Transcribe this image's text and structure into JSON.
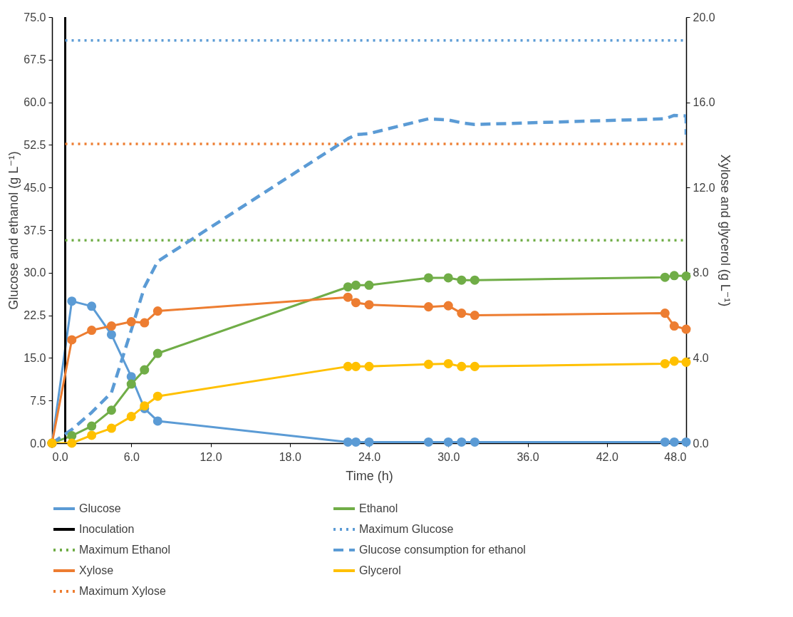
{
  "chart_data": {
    "type": "line",
    "xlabel": "Time (h)",
    "ylabel": "Glucose and ethanol (g L⁻¹)",
    "y2label": "Xylose and glycerol (g L⁻¹)",
    "x": [
      0,
      1.5,
      3,
      4.5,
      6,
      7,
      8,
      22.4,
      23,
      24,
      28.5,
      30,
      31,
      32,
      46.4,
      47.1,
      48
    ],
    "series": [
      {
        "name": "Glucose",
        "color": "#5b9bd5",
        "values": [
          0,
          25.0,
          24.1,
          19.1,
          11.7,
          6.1,
          3.9,
          0.2,
          0.2,
          0.2,
          0.2,
          0.2,
          0.2,
          0.2,
          0.2,
          0.2,
          0.2
        ]
      },
      {
        "name": "Ethanol",
        "color": "#70ad47",
        "values": [
          0,
          1.3,
          3.0,
          5.8,
          10.4,
          12.9,
          15.8,
          27.5,
          27.8,
          27.8,
          29.1,
          29.1,
          28.7,
          28.7,
          29.2,
          29.5,
          29.4
        ]
      },
      {
        "name": "Inoculation",
        "color": "#000000",
        "marker": "none",
        "x": [
          1,
          1
        ],
        "values": [
          0,
          75
        ]
      },
      {
        "name": "Maximum Glucose",
        "color": "#5b9bd5",
        "line_style": "dotted",
        "marker": "none",
        "x": [
          1,
          48
        ],
        "values": [
          70.9,
          70.9
        ]
      },
      {
        "name": "Maximum Ethanol",
        "color": "#70ad47",
        "line_style": "dotted",
        "marker": "none",
        "x": [
          1,
          48
        ],
        "values": [
          35.7,
          35.7
        ]
      },
      {
        "name": "Glucose consumption for ethanol",
        "color": "#5b9bd5",
        "line_style": "dashed",
        "marker": "none",
        "x": [
          0,
          1.5,
          3,
          4.5,
          6,
          7,
          8,
          22.4,
          23,
          24,
          28.5,
          30,
          31,
          32,
          46.4,
          47.1,
          48,
          48
        ],
        "values": [
          0,
          2.4,
          5.4,
          8.9,
          19.9,
          27.5,
          32.0,
          53.6,
          54.3,
          54.5,
          57.1,
          56.9,
          56.4,
          56.1,
          57.1,
          57.7,
          57.6,
          54.3
        ]
      },
      {
        "name": "Xylose",
        "color": "#ed7d31",
        "axis": "y2",
        "values": [
          0,
          4.85,
          5.3,
          5.5,
          5.7,
          5.65,
          6.2,
          6.85,
          6.6,
          6.5,
          6.4,
          6.45,
          6.1,
          6.0,
          6.1,
          5.5,
          5.35
        ]
      },
      {
        "name": "Glycerol",
        "color": "#ffc000",
        "axis": "y2",
        "values": [
          0,
          0,
          0.37,
          0.7,
          1.25,
          1.75,
          2.2,
          3.6,
          3.6,
          3.6,
          3.7,
          3.73,
          3.6,
          3.6,
          3.73,
          3.85,
          3.8
        ]
      },
      {
        "name": "Maximum Xylose",
        "color": "#ed7d31",
        "line_style": "dotted",
        "marker": "none",
        "axis": "y2",
        "x": [
          1,
          48
        ],
        "values": [
          14.05,
          14.05
        ]
      }
    ],
    "xlim": [
      0,
      48
    ],
    "xticks": [
      {
        "value": 0,
        "label": "0.0"
      },
      {
        "value": 6,
        "label": "6.0"
      },
      {
        "value": 12,
        "label": "12.0"
      },
      {
        "value": 18,
        "label": "18.0"
      },
      {
        "value": 24,
        "label": "24.0"
      },
      {
        "value": 30,
        "label": "30.0"
      },
      {
        "value": 36,
        "label": "36.0"
      },
      {
        "value": 42,
        "label": "42.0"
      },
      {
        "value": 48,
        "label": "48.0"
      }
    ],
    "ylim": [
      0,
      75
    ],
    "yticks": [
      {
        "value": 0,
        "label": "0.0"
      },
      7.5,
      {
        "value": 15,
        "label": "15.0"
      },
      22.5,
      {
        "value": 30,
        "label": "30.0"
      },
      37.5,
      {
        "value": 45,
        "label": "45.0"
      },
      52.5,
      {
        "value": 60,
        "label": "60.0"
      },
      67.5,
      {
        "value": 75,
        "label": "75.0"
      }
    ],
    "y2lim": [
      0,
      20
    ],
    "y2ticks": [
      {
        "value": 0,
        "label": "0.0"
      },
      {
        "value": 4,
        "label": "4.0"
      },
      {
        "value": 8,
        "label": "8.0"
      },
      {
        "value": 12,
        "label": "12.0"
      },
      {
        "value": 16,
        "label": "16.0"
      },
      {
        "value": 20,
        "label": "20.0"
      }
    ],
    "grid": false,
    "legend": "bottom",
    "marker": "circle",
    "line_style": "solid"
  }
}
